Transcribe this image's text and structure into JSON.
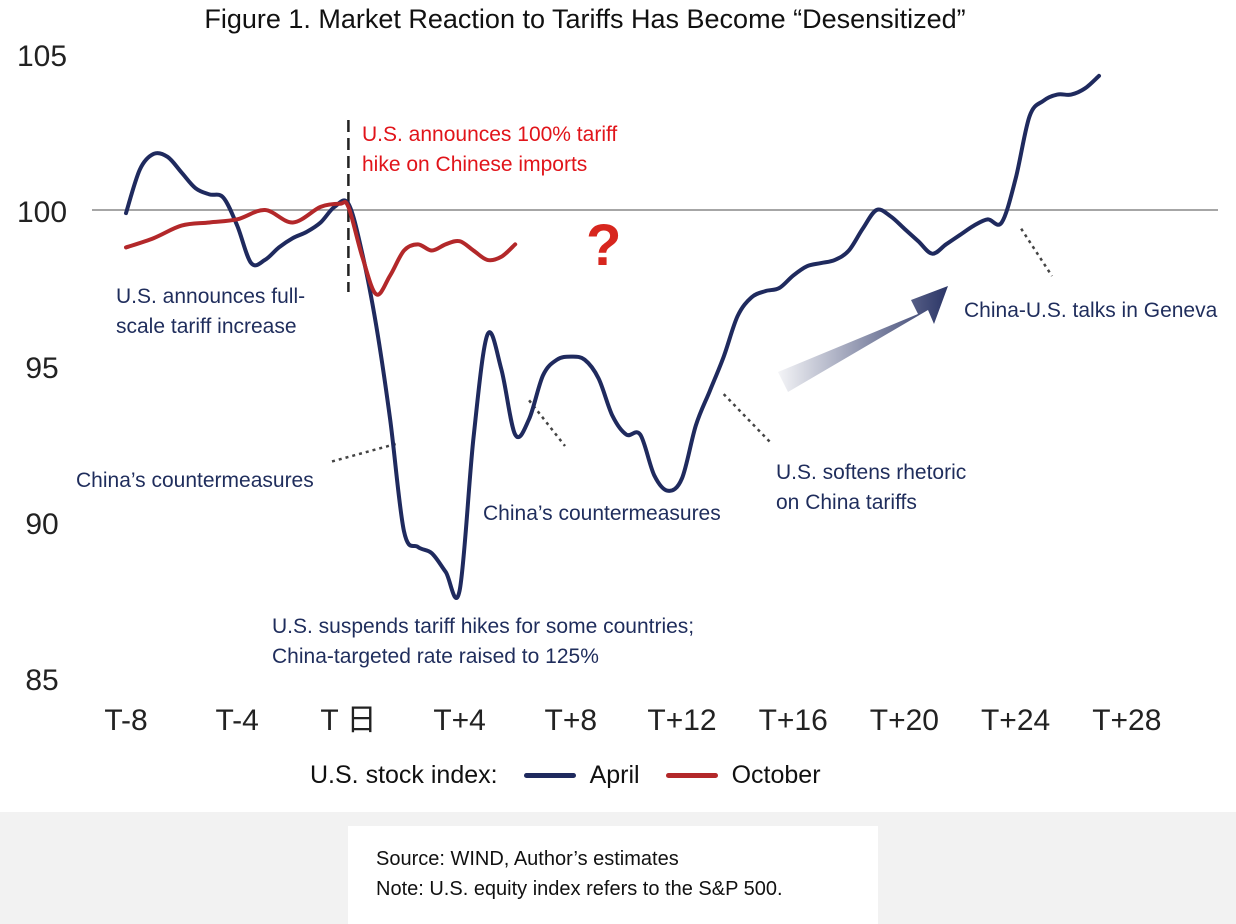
{
  "chart_data": {
    "type": "line",
    "title": "Figure 1. Market Reaction to Tariffs Has Become “Desensitized”",
    "xlabel": "",
    "ylabel": "",
    "xlim": [
      -9,
      31
    ],
    "ylim": [
      85,
      105
    ],
    "yticks": [
      85,
      90,
      95,
      100,
      105
    ],
    "xticks": [
      {
        "x": -8,
        "label": "T-8"
      },
      {
        "x": -4,
        "label": "T-4"
      },
      {
        "x": 0,
        "label": "T 日"
      },
      {
        "x": 4,
        "label": "T+4"
      },
      {
        "x": 8,
        "label": "T+8"
      },
      {
        "x": 12,
        "label": "T+12"
      },
      {
        "x": 16,
        "label": "T+16"
      },
      {
        "x": 20,
        "label": "T+20"
      },
      {
        "x": 24,
        "label": "T+24"
      },
      {
        "x": 28,
        "label": "T+28"
      }
    ],
    "reference_line": 100,
    "event_day": 0,
    "series": [
      {
        "name": "April",
        "color": "#1f2a5e",
        "points": [
          [
            -8,
            99.9
          ],
          [
            -7.5,
            101.3
          ],
          [
            -7,
            101.8
          ],
          [
            -6.5,
            101.7
          ],
          [
            -6,
            101.2
          ],
          [
            -5.5,
            100.7
          ],
          [
            -5,
            100.5
          ],
          [
            -4.5,
            100.4
          ],
          [
            -4,
            99.5
          ],
          [
            -3.5,
            98.3
          ],
          [
            -3,
            98.4
          ],
          [
            -2.5,
            98.8
          ],
          [
            -2,
            99.1
          ],
          [
            -1.5,
            99.3
          ],
          [
            -1,
            99.6
          ],
          [
            -0.5,
            100.1
          ],
          [
            0,
            100.2
          ],
          [
            0.5,
            98.6
          ],
          [
            1,
            96.3
          ],
          [
            1.5,
            93.3
          ],
          [
            2,
            89.7
          ],
          [
            2.5,
            89.2
          ],
          [
            3,
            89.0
          ],
          [
            3.5,
            88.4
          ],
          [
            4,
            87.8
          ],
          [
            4.5,
            92.7
          ],
          [
            5,
            96.0
          ],
          [
            5.5,
            94.9
          ],
          [
            6,
            92.8
          ],
          [
            6.5,
            93.3
          ],
          [
            7,
            94.7
          ],
          [
            7.5,
            95.2
          ],
          [
            8,
            95.3
          ],
          [
            8.5,
            95.2
          ],
          [
            9,
            94.6
          ],
          [
            9.5,
            93.4
          ],
          [
            10,
            92.8
          ],
          [
            10.5,
            92.8
          ],
          [
            11,
            91.5
          ],
          [
            11.5,
            91.0
          ],
          [
            12,
            91.4
          ],
          [
            12.5,
            93.1
          ],
          [
            13,
            94.2
          ],
          [
            13.5,
            95.3
          ],
          [
            14,
            96.6
          ],
          [
            14.5,
            97.2
          ],
          [
            15,
            97.4
          ],
          [
            15.5,
            97.5
          ],
          [
            16,
            97.9
          ],
          [
            16.5,
            98.2
          ],
          [
            17,
            98.3
          ],
          [
            17.5,
            98.4
          ],
          [
            18,
            98.7
          ],
          [
            18.5,
            99.4
          ],
          [
            19,
            100.0
          ],
          [
            19.5,
            99.8
          ],
          [
            20,
            99.4
          ],
          [
            20.5,
            99.0
          ],
          [
            21,
            98.6
          ],
          [
            21.5,
            98.9
          ],
          [
            22,
            99.2
          ],
          [
            22.5,
            99.5
          ],
          [
            23,
            99.7
          ],
          [
            23.5,
            99.6
          ],
          [
            24,
            101.0
          ],
          [
            24.5,
            103.0
          ],
          [
            25,
            103.5
          ],
          [
            25.5,
            103.7
          ],
          [
            26,
            103.7
          ],
          [
            26.5,
            103.9
          ],
          [
            27,
            104.3
          ]
        ]
      },
      {
        "name": "October",
        "color": "#b3282a",
        "points": [
          [
            -8,
            98.8
          ],
          [
            -7,
            99.1
          ],
          [
            -6,
            99.5
          ],
          [
            -5,
            99.6
          ],
          [
            -4,
            99.7
          ],
          [
            -3,
            100.0
          ],
          [
            -2,
            99.6
          ],
          [
            -1,
            100.1
          ],
          [
            -0.3,
            100.2
          ],
          [
            0,
            100.1
          ],
          [
            0.5,
            98.5
          ],
          [
            1,
            97.3
          ],
          [
            1.5,
            97.9
          ],
          [
            2,
            98.7
          ],
          [
            2.5,
            98.9
          ],
          [
            3,
            98.7
          ],
          [
            3.5,
            98.9
          ],
          [
            4,
            99.0
          ],
          [
            4.5,
            98.7
          ],
          [
            5,
            98.4
          ],
          [
            5.5,
            98.5
          ],
          [
            6,
            98.9
          ]
        ]
      }
    ],
    "annotations": [
      "U.S. announces 100% tariff hike on Chinese imports",
      "U.S. announces full-scale tariff increase",
      "China’s countermeasures",
      "U.S. suspends tariff hikes for some countries; China-targeted rate raised to 125%",
      "China’s countermeasures",
      "U.S. softens rhetoric on China tariffs",
      "China-U.S. talks in Geneva"
    ],
    "legend": {
      "label": "U.S. stock index:",
      "position": "bottom-center",
      "entries": [
        "April",
        "October"
      ]
    }
  },
  "labels": {
    "title": "Figure 1. Market Reaction to Tariffs Has Become “Desensitized”",
    "anno_us_100": [
      "U.S. announces 100% tariff",
      "hike on Chinese imports"
    ],
    "anno_full_scale": [
      "U.S. announces full-",
      "scale tariff increase"
    ],
    "anno_china_1": "China’s countermeasures",
    "anno_suspend": [
      "U.S. suspends tariff hikes for some countries;",
      "China-targeted rate raised to 125%"
    ],
    "anno_china_2": "China’s countermeasures",
    "anno_soften": [
      "U.S. softens rhetoric",
      "on China tariffs"
    ],
    "anno_geneva": "China-U.S. talks in Geneva",
    "question_mark": "?",
    "legend_label": "U.S. stock index:",
    "legend_april": "April",
    "legend_october": "October"
  },
  "footer": {
    "source": "Source: WIND, Author’s estimates",
    "note": "Note: U.S. equity index refers to the S&P 500."
  }
}
